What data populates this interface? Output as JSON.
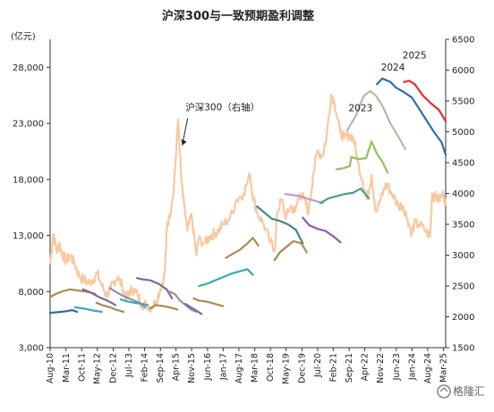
{
  "chart_data": {
    "type": "line",
    "title": "沪深300与一致预期盈利调整",
    "left_axis": {
      "unit": "(亿元)",
      "min": 3000,
      "max": 30500,
      "ticks": [
        "3,000",
        "8,000",
        "13,000",
        "18,000",
        "23,000",
        "28,000"
      ]
    },
    "right_axis": {
      "min": 1500,
      "max": 6500,
      "ticks": [
        "1500",
        "2000",
        "2500",
        "3000",
        "3500",
        "4000",
        "4500",
        "5000",
        "5500",
        "6000",
        "6500"
      ]
    },
    "x_range": [
      2010.58,
      2025.25
    ],
    "x_ticks": [
      {
        "label": "Aug-10",
        "t": 2010.58
      },
      {
        "label": "Mar-11",
        "t": 2011.17
      },
      {
        "label": "Oct-11",
        "t": 2011.75
      },
      {
        "label": "May-12",
        "t": 2012.33
      },
      {
        "label": "Dec-12",
        "t": 2012.92
      },
      {
        "label": "Jul-13",
        "t": 2013.5
      },
      {
        "label": "Feb-14",
        "t": 2014.08
      },
      {
        "label": "Sep-14",
        "t": 2014.67
      },
      {
        "label": "Apr-15",
        "t": 2015.25
      },
      {
        "label": "Nov-15",
        "t": 2015.83
      },
      {
        "label": "Jun-16",
        "t": 2016.42
      },
      {
        "label": "Jan-17",
        "t": 2017.0
      },
      {
        "label": "Aug-17",
        "t": 2017.58
      },
      {
        "label": "Mar-18",
        "t": 2018.17
      },
      {
        "label": "Oct-18",
        "t": 2018.75
      },
      {
        "label": "May-19",
        "t": 2019.33
      },
      {
        "label": "Dec-19",
        "t": 2019.92
      },
      {
        "label": "Jul-20",
        "t": 2020.5
      },
      {
        "label": "Feb-21",
        "t": 2021.08
      },
      {
        "label": "Sep-21",
        "t": 2021.67
      },
      {
        "label": "Apr-22",
        "t": 2022.25
      },
      {
        "label": "Nov-22",
        "t": 2022.83
      },
      {
        "label": "Jun-23",
        "t": 2023.42
      },
      {
        "label": "Jan-24",
        "t": 2024.0
      },
      {
        "label": "Aug-24",
        "t": 2024.58
      },
      {
        "label": "Mar-25",
        "t": 2025.17
      }
    ],
    "index_series": {
      "name": "沪深300（右轴）",
      "color": "#f8c9a0",
      "axis": "right",
      "x": [
        2010.58,
        2010.7,
        2010.83,
        2010.92,
        2011.0,
        2011.17,
        2011.33,
        2011.5,
        2011.67,
        2011.83,
        2012.0,
        2012.17,
        2012.33,
        2012.5,
        2012.67,
        2012.83,
        2012.92,
        2013.08,
        2013.25,
        2013.42,
        2013.5,
        2013.67,
        2013.83,
        2014.0,
        2014.17,
        2014.33,
        2014.5,
        2014.67,
        2014.83,
        2014.92,
        2015.0,
        2015.17,
        2015.33,
        2015.45,
        2015.55,
        2015.67,
        2015.83,
        2016.0,
        2016.08,
        2016.33,
        2016.5,
        2016.67,
        2016.83,
        2017.0,
        2017.25,
        2017.5,
        2017.75,
        2018.0,
        2018.08,
        2018.25,
        2018.5,
        2018.75,
        2018.92,
        2019.0,
        2019.17,
        2019.33,
        2019.5,
        2019.67,
        2019.83,
        2020.0,
        2020.17,
        2020.33,
        2020.5,
        2020.67,
        2020.83,
        2021.0,
        2021.12,
        2021.33,
        2021.5,
        2021.67,
        2021.83,
        2022.0,
        2022.17,
        2022.33,
        2022.5,
        2022.67,
        2022.83,
        2023.0,
        2023.08,
        2023.25,
        2023.5,
        2023.67,
        2023.83,
        2024.0,
        2024.08,
        2024.25,
        2024.5,
        2024.67,
        2024.75,
        2024.83,
        2025.0,
        2025.17,
        2025.25
      ],
      "y": [
        2850,
        3350,
        3050,
        3200,
        3050,
        2900,
        3000,
        2850,
        2650,
        2600,
        2550,
        2600,
        2700,
        2500,
        2350,
        2450,
        2550,
        2650,
        2500,
        2300,
        2400,
        2450,
        2350,
        2200,
        2200,
        2150,
        2250,
        2450,
        2700,
        3500,
        3600,
        4100,
        5200,
        4200,
        3800,
        3400,
        3650,
        3000,
        3250,
        3200,
        3300,
        3350,
        3400,
        3500,
        3600,
        3900,
        4000,
        4300,
        4000,
        3700,
        3500,
        3200,
        3100,
        3700,
        3900,
        3600,
        3800,
        3700,
        4000,
        3900,
        3700,
        4300,
        4700,
        4600,
        4900,
        5600,
        5500,
        5000,
        4900,
        4950,
        4900,
        4500,
        4200,
        3900,
        4300,
        3700,
        3900,
        4100,
        4150,
        4000,
        3800,
        3800,
        3600,
        3350,
        3500,
        3500,
        3400,
        3300,
        4000,
        3950,
        3900,
        4000,
        3800
      ]
    },
    "series": [
      {
        "color": "#2e6ea8",
        "x": [
          2010.58,
          2010.8,
          2011.0,
          2011.2,
          2011.4,
          2011.58
        ],
        "y": [
          6100,
          6150,
          6200,
          6250,
          6350,
          6200
        ]
      },
      {
        "color": "#a98c52",
        "x": [
          2010.58,
          2010.8,
          2011.0,
          2011.3,
          2011.6,
          2011.9,
          2012.1,
          2012.25
        ],
        "y": [
          7500,
          7800,
          8000,
          8200,
          8100,
          8000,
          7900,
          7800
        ]
      },
      {
        "color": "#3aa8b8",
        "x": [
          2011.5,
          2011.8,
          2012.0,
          2012.2,
          2012.5
        ],
        "y": [
          6600,
          6500,
          6400,
          6300,
          6200
        ]
      },
      {
        "color": "#7a6a9a",
        "x": [
          2011.8,
          2012.1,
          2012.4,
          2012.7,
          2013.0
        ],
        "y": [
          8200,
          7900,
          7500,
          7200,
          6800
        ]
      },
      {
        "color": "#a98c52",
        "x": [
          2012.3,
          2012.5,
          2012.8,
          2013.0,
          2013.3
        ],
        "y": [
          7000,
          6800,
          6600,
          6400,
          6200
        ]
      },
      {
        "color": "#9a8ab0",
        "x": [
          2012.8,
          2013.0,
          2013.3,
          2013.6,
          2013.9,
          2014.1
        ],
        "y": [
          8300,
          8000,
          7600,
          7300,
          7000,
          6600
        ]
      },
      {
        "color": "#3aa8b8",
        "x": [
          2013.2,
          2013.4,
          2013.7,
          2014.0,
          2014.2
        ],
        "y": [
          7300,
          7150,
          7000,
          6900,
          6800
        ]
      },
      {
        "color": "#7a6a9a",
        "x": [
          2013.8,
          2014.0,
          2014.3,
          2014.6,
          2014.9,
          2015.1
        ],
        "y": [
          9200,
          9100,
          9000,
          8700,
          8200,
          7400
        ]
      },
      {
        "color": "#a98c52",
        "x": [
          2014.3,
          2014.5,
          2014.8,
          2015.0,
          2015.3
        ],
        "y": [
          6500,
          6800,
          6700,
          6600,
          6400
        ]
      },
      {
        "color": "#9a8ab0",
        "x": [
          2015.0,
          2015.2,
          2015.4,
          2015.6,
          2015.8,
          2016.0
        ],
        "y": [
          8000,
          7800,
          7200,
          6800,
          6400,
          6200
        ]
      },
      {
        "color": "#7a6a9a",
        "x": [
          2015.6,
          2015.8,
          2016.0,
          2016.2
        ],
        "y": [
          6900,
          6600,
          6300,
          6000
        ]
      },
      {
        "color": "#a98c52",
        "x": [
          2015.9,
          2016.1,
          2016.4,
          2016.7,
          2017.0
        ],
        "y": [
          7400,
          7200,
          7100,
          6900,
          6700
        ]
      },
      {
        "color": "#3aa8b8",
        "x": [
          2016.1,
          2016.4,
          2016.7,
          2017.0,
          2017.3,
          2017.6,
          2017.9,
          2018.1
        ],
        "y": [
          8500,
          8700,
          9000,
          9300,
          9600,
          9800,
          10000,
          9500
        ]
      },
      {
        "color": "#a98c52",
        "x": [
          2017.1,
          2017.3,
          2017.6,
          2017.9,
          2018.1,
          2018.3
        ],
        "y": [
          11000,
          11300,
          11700,
          12300,
          12800,
          12100
        ]
      },
      {
        "color": "#3d8a80",
        "x": [
          2018.25,
          2018.5,
          2018.8,
          2019.1,
          2019.4,
          2019.7,
          2019.95
        ],
        "y": [
          15600,
          15100,
          14500,
          14300,
          14000,
          13500,
          12300
        ]
      },
      {
        "color": "#a98c52",
        "x": [
          2018.9,
          2019.1,
          2019.35,
          2019.6,
          2019.9,
          2020.1
        ],
        "y": [
          10800,
          11500,
          12000,
          12500,
          12300,
          11500
        ]
      },
      {
        "color": "#c09cc8",
        "x": [
          2019.3,
          2019.6,
          2019.9,
          2020.1,
          2020.4,
          2020.7
        ],
        "y": [
          16700,
          16600,
          16500,
          16300,
          16100,
          15900
        ]
      },
      {
        "color": "#8f5aa6",
        "x": [
          2019.95,
          2020.2,
          2020.5,
          2020.8,
          2021.1,
          2021.35
        ],
        "y": [
          14600,
          13900,
          13600,
          13400,
          12900,
          12400
        ]
      },
      {
        "color": "#4aa08a",
        "x": [
          2020.6,
          2020.9,
          2021.2,
          2021.5,
          2021.8,
          2022.1,
          2022.4
        ],
        "y": [
          15900,
          16300,
          16500,
          16700,
          16800,
          17200,
          16300
        ]
      },
      {
        "color": "#94c15a",
        "x": [
          2021.2,
          2021.45,
          2021.7,
          2021.75,
          2022.0,
          2022.3,
          2022.5,
          2022.7,
          2022.9,
          2023.1
        ],
        "y": [
          18900,
          19000,
          19200,
          20000,
          19800,
          19900,
          21400,
          20300,
          19600,
          18600
        ]
      },
      {
        "color": "#b8b8a6",
        "x": [
          2021.6,
          2021.9,
          2022.2,
          2022.45,
          2022.65,
          2022.9,
          2023.2,
          2023.5,
          2023.75
        ],
        "y": [
          22400,
          23600,
          25400,
          25900,
          25500,
          24600,
          23000,
          21800,
          20700
        ]
      },
      {
        "color": "#2e6ea8",
        "x": [
          2022.7,
          2022.9,
          2023.2,
          2023.4,
          2023.7,
          2024.0,
          2024.4,
          2024.8,
          2025.1,
          2025.25
        ],
        "y": [
          26500,
          27000,
          26700,
          26200,
          25800,
          25300,
          23800,
          22300,
          21300,
          20200
        ]
      },
      {
        "color": "#e03030",
        "x": [
          2023.7,
          2023.9,
          2024.1,
          2024.4,
          2024.7,
          2025.0,
          2025.25
        ],
        "y": [
          26700,
          26800,
          26500,
          25500,
          24800,
          24200,
          23200
        ]
      }
    ],
    "annotations": [
      {
        "text": "沪深300（右轴）",
        "x": 2015.6,
        "y_right": 5350
      },
      {
        "text": "2023",
        "x": 2021.65,
        "y_left": 24100
      },
      {
        "text": "2024",
        "x": 2022.85,
        "y_left": 27700
      },
      {
        "text": "2025",
        "x": 2023.65,
        "y_left": 28800
      }
    ],
    "watermark": "格隆汇"
  }
}
